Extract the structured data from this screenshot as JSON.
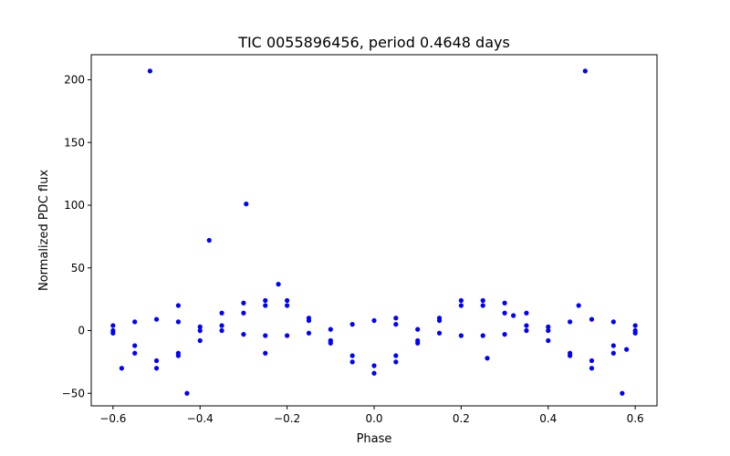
{
  "chart_data": {
    "type": "scatter",
    "title": "TIC 0055896456, period 0.4648 days",
    "xlabel": "Phase",
    "ylabel": "Normalized PDC flux",
    "xlim": [
      -0.65,
      0.65
    ],
    "ylim": [
      -60,
      220
    ],
    "grid": false,
    "point_color": "#0000ff",
    "x_ticks": [
      -0.6,
      -0.4,
      -0.2,
      0.0,
      0.2,
      0.4,
      0.6
    ],
    "x_tick_labels": [
      "−0.6",
      "−0.4",
      "−0.2",
      "0.0",
      "0.2",
      "0.4",
      "0.6"
    ],
    "y_ticks": [
      -50,
      0,
      50,
      100,
      150,
      200
    ],
    "y_tick_labels": [
      "−50",
      "0",
      "50",
      "100",
      "150",
      "200"
    ],
    "series": [
      {
        "x": [
          -0.6,
          -0.55,
          -0.5,
          -0.45,
          -0.4,
          -0.35,
          -0.3,
          -0.25,
          -0.2,
          -0.15,
          -0.1,
          -0.05,
          0.0,
          0.05,
          0.1,
          0.15,
          0.2,
          0.25,
          0.3,
          0.35,
          0.4,
          0.45,
          0.5,
          0.55,
          0.6
        ],
        "y": [
          0,
          -18,
          -30,
          -20,
          0,
          14,
          22,
          24,
          20,
          8,
          -10,
          -25,
          -34,
          -25,
          -10,
          8,
          20,
          24,
          22,
          14,
          0,
          -20,
          -30,
          -18,
          0
        ]
      },
      {
        "x": [
          -0.6,
          -0.55,
          -0.5,
          -0.45,
          -0.4,
          -0.35,
          -0.3,
          -0.25,
          -0.2,
          -0.15,
          -0.1,
          -0.05,
          0.0,
          0.05,
          0.1,
          0.15,
          0.2,
          0.25,
          0.3,
          0.35,
          0.4,
          0.45,
          0.5,
          0.55,
          0.6
        ],
        "y": [
          4,
          7,
          9,
          7,
          3,
          0,
          -3,
          -4,
          -4,
          -2,
          1,
          5,
          8,
          5,
          1,
          -2,
          -4,
          -4,
          -3,
          0,
          3,
          7,
          9,
          7,
          4
        ]
      },
      {
        "x": [
          -0.6,
          -0.55,
          -0.5,
          -0.45,
          -0.4,
          -0.35,
          -0.3,
          -0.25,
          -0.2,
          -0.15,
          -0.1,
          -0.05,
          0.0,
          0.05,
          0.1,
          0.15,
          0.2,
          0.25,
          0.3,
          0.35,
          0.4,
          0.45,
          0.5,
          0.55,
          0.6
        ],
        "y": [
          -2,
          -12,
          -24,
          -18,
          -8,
          4,
          14,
          20,
          24,
          10,
          -8,
          -20,
          -28,
          -20,
          -8,
          10,
          24,
          20,
          14,
          4,
          -8,
          -18,
          -24,
          -12,
          -2
        ]
      },
      {
        "x": [
          -0.515,
          -0.294,
          -0.379,
          0.485,
          -0.43,
          0.57,
          -0.22,
          0.26,
          -0.58,
          0.58,
          -0.25,
          0.32,
          -0.45,
          0.47,
          -0.1,
          0.05
        ],
        "y": [
          207,
          101,
          72,
          207,
          -50,
          -50,
          37,
          -22,
          -30,
          -15,
          -18,
          12,
          20,
          20,
          -8,
          10
        ]
      }
    ]
  }
}
